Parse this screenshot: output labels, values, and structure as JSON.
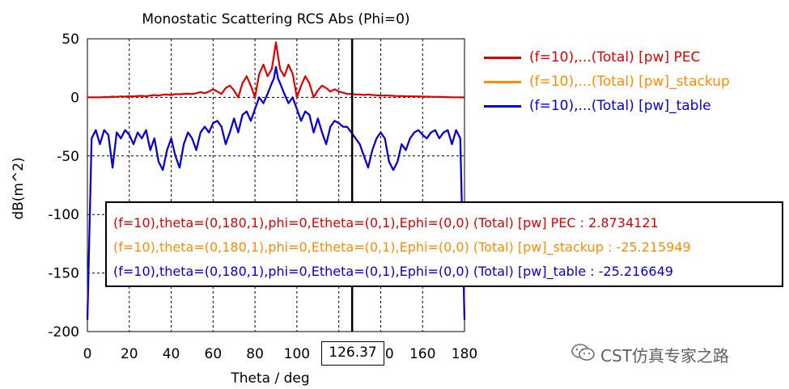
{
  "chart_data": {
    "type": "line",
    "title": "Monostatic Scattering RCS Abs (Phi=0)",
    "xlabel": "Theta / deg",
    "ylabel": "dB(m^2)",
    "xlim": [
      0,
      180
    ],
    "ylim": [
      -200,
      50
    ],
    "xticks": [
      "0",
      "20",
      "40",
      "60",
      "80",
      "100",
      "120",
      "140",
      "160",
      "180"
    ],
    "yticks": [
      "50",
      "0",
      "-50",
      "-100",
      "-150",
      "-200"
    ],
    "grid": true,
    "legend_position": "right",
    "cursor_x": 126.37,
    "cursor_label": "126.37",
    "x": [
      0,
      2,
      4,
      6,
      8,
      10,
      12,
      14,
      16,
      18,
      20,
      22,
      24,
      26,
      28,
      30,
      32,
      34,
      36,
      38,
      40,
      42,
      44,
      46,
      48,
      50,
      52,
      54,
      56,
      58,
      60,
      62,
      64,
      66,
      68,
      70,
      72,
      74,
      76,
      78,
      80,
      82,
      84,
      86,
      88,
      89,
      90,
      91,
      92,
      94,
      96,
      98,
      100,
      102,
      104,
      106,
      108,
      110,
      112,
      114,
      116,
      118,
      120,
      122,
      124,
      126,
      128,
      130,
      132,
      134,
      136,
      138,
      140,
      142,
      144,
      146,
      148,
      150,
      152,
      154,
      156,
      158,
      160,
      162,
      164,
      166,
      168,
      170,
      172,
      174,
      176,
      178,
      180
    ],
    "series": [
      {
        "name": "(f=10),...(Total) [pw] PEC",
        "color": "#e00000",
        "values": [
          0,
          0,
          0,
          0,
          0.3,
          0.2,
          0.6,
          0.4,
          0.8,
          0.6,
          1,
          0.8,
          1.2,
          1.3,
          1,
          1.5,
          2,
          1.5,
          2.2,
          2.4,
          2,
          2.8,
          2.6,
          3,
          3.2,
          2.8,
          3.5,
          4.5,
          3.5,
          5,
          7,
          5,
          3,
          8,
          10,
          6,
          0,
          12,
          18,
          10,
          0,
          20,
          28,
          18,
          24,
          35,
          47,
          35,
          24,
          18,
          28,
          20,
          0,
          10,
          18,
          12,
          0,
          6,
          10,
          8,
          5,
          7,
          5,
          4,
          3,
          2.9,
          2.5,
          2.5,
          2,
          2.5,
          2,
          1.8,
          1.5,
          1.6,
          1.5,
          1.3,
          1.1,
          1.2,
          1,
          0.9,
          0.8,
          0.8,
          0.6,
          0.6,
          0.5,
          0.4,
          0.4,
          0.3,
          0.2,
          0.1,
          0.1,
          0,
          0
        ]
      },
      {
        "name": "(f=10),...(Total) [pw]_stackup",
        "color": "#ff8c00",
        "values": [
          -190,
          -35,
          -28,
          -40,
          -28,
          -32,
          -60,
          -30,
          -35,
          -28,
          -32,
          -40,
          -30,
          -35,
          -28,
          -45,
          -35,
          -55,
          -62,
          -45,
          -35,
          -50,
          -60,
          -40,
          -30,
          -35,
          -45,
          -30,
          -25,
          -30,
          -22,
          -20,
          -25,
          -40,
          -30,
          -18,
          -30,
          -15,
          -12,
          -20,
          -10,
          0,
          -5,
          3,
          12,
          16,
          26,
          16,
          12,
          3,
          -5,
          0,
          -10,
          -20,
          -12,
          -15,
          -30,
          -18,
          -30,
          -40,
          -25,
          -20,
          -22,
          -25,
          -25.2,
          -30,
          -35,
          -40,
          -50,
          -60,
          -45,
          -35,
          -30,
          -35,
          -55,
          -62,
          -55,
          -40,
          -45,
          -35,
          -30,
          -28,
          -32,
          -35,
          -30,
          -28,
          -35,
          -30,
          -28,
          -40,
          -28,
          -35,
          -190
        ]
      },
      {
        "name": "(f=10),...(Total) [pw]_table",
        "color": "#0000e0",
        "values": [
          -190,
          -35,
          -28,
          -40,
          -28,
          -32,
          -60,
          -30,
          -35,
          -28,
          -32,
          -40,
          -30,
          -35,
          -28,
          -45,
          -35,
          -55,
          -62,
          -45,
          -35,
          -50,
          -60,
          -40,
          -30,
          -35,
          -45,
          -30,
          -25,
          -30,
          -22,
          -20,
          -25,
          -40,
          -30,
          -18,
          -30,
          -15,
          -12,
          -20,
          -10,
          0,
          -5,
          3,
          12,
          16,
          26,
          16,
          12,
          3,
          -5,
          0,
          -10,
          -20,
          -12,
          -15,
          -30,
          -18,
          -30,
          -40,
          -25,
          -20,
          -22,
          -25,
          -25.2,
          -30,
          -35,
          -40,
          -50,
          -60,
          -45,
          -35,
          -30,
          -35,
          -55,
          -62,
          -55,
          -40,
          -45,
          -35,
          -30,
          -28,
          -32,
          -35,
          -30,
          -28,
          -35,
          -30,
          -28,
          -40,
          -28,
          -35,
          -190
        ]
      }
    ]
  },
  "legend": [
    {
      "label": "(f=10),...(Total) [pw] PEC",
      "color": "#e00000"
    },
    {
      "label": "(f=10),...(Total) [pw]_stackup",
      "color": "#ff8c00"
    },
    {
      "label": "(f=10),...(Total) [pw]_table",
      "color": "#0000e0"
    }
  ],
  "tooltip": [
    {
      "text": "(f=10),theta=(0,180,1),phi=0,Etheta=(0,1),Ephi=(0,0) (Total) [pw] PEC : 2.8734121",
      "color": "#e00000"
    },
    {
      "text": "(f=10),theta=(0,180,1),phi=0,Etheta=(0,1),Ephi=(0,0) (Total) [pw]_stackup : -25.215949",
      "color": "#ff8c00"
    },
    {
      "text": "(f=10),theta=(0,180,1),phi=0,Etheta=(0,1),Ephi=(0,0) (Total) [pw]_table : -25.216649",
      "color": "#0000e0"
    }
  ],
  "watermark": {
    "text": "CST仿真专家之路"
  }
}
